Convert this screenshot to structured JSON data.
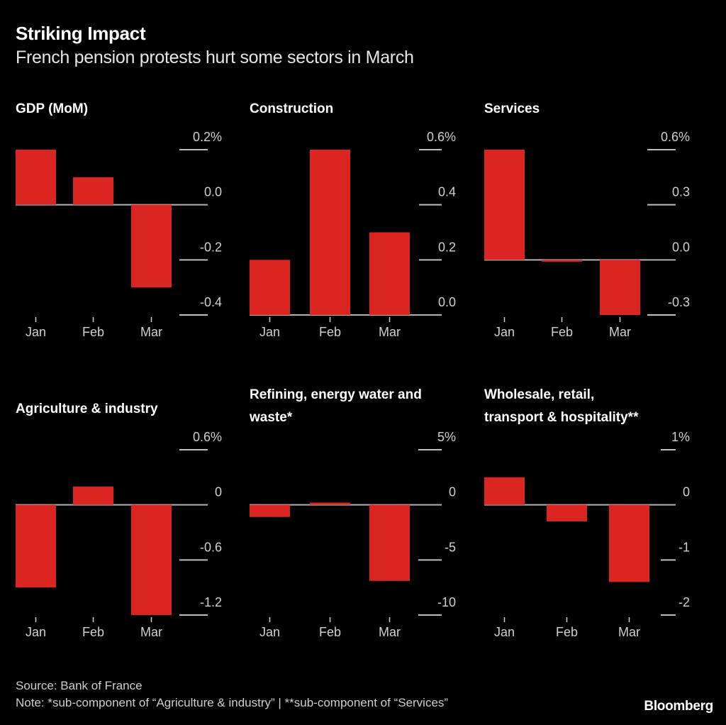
{
  "header": {
    "title": "Striking Impact",
    "subtitle": "French pension protests hurt some sectors in March"
  },
  "footer": {
    "source": "Source: Bank of France",
    "note": "Note: *sub-component of “Agriculture & industry” | **sub-component of “Services”",
    "brand": "Bloomberg"
  },
  "colors": {
    "background": "#000000",
    "bar": "#da2520",
    "zero_line": "#b3b3b3",
    "gridline": "#bfbfbf",
    "text": "#ffffff",
    "muted_text": "#d0d0d0"
  },
  "chart_data": [
    {
      "type": "bar",
      "title": "GDP (MoM)",
      "title_lines": [
        "GDP (MoM)"
      ],
      "categories": [
        "Jan",
        "Feb",
        "Mar"
      ],
      "values": [
        0.2,
        0.1,
        -0.3
      ],
      "unit": "%",
      "yticks": [
        0.2,
        0.0,
        -0.2,
        -0.4
      ],
      "ytick_labels": [
        "0.2%",
        "0.0",
        "-0.2",
        "-0.4"
      ],
      "ylim": [
        -0.4,
        0.2
      ],
      "grid": true
    },
    {
      "type": "bar",
      "title": "Construction",
      "title_lines": [
        "Construction"
      ],
      "categories": [
        "Jan",
        "Feb",
        "Mar"
      ],
      "values": [
        0.2,
        0.6,
        0.3
      ],
      "unit": "%",
      "yticks": [
        0.6,
        0.4,
        0.2,
        0.0
      ],
      "ytick_labels": [
        "0.6%",
        "0.4",
        "0.2",
        "0.0"
      ],
      "ylim": [
        0.0,
        0.6
      ],
      "grid": true
    },
    {
      "type": "bar",
      "title": "Services",
      "title_lines": [
        "Services"
      ],
      "categories": [
        "Jan",
        "Feb",
        "Mar"
      ],
      "values": [
        0.6,
        -0.01,
        -0.3
      ],
      "unit": "%",
      "yticks": [
        0.6,
        0.3,
        0.0,
        -0.3
      ],
      "ytick_labels": [
        "0.6%",
        "0.3",
        "0.0",
        "-0.3"
      ],
      "ylim": [
        -0.3,
        0.6
      ],
      "grid": true
    },
    {
      "type": "bar",
      "title": "Agriculture & industry",
      "title_lines": [
        "Agriculture & industry"
      ],
      "categories": [
        "Jan",
        "Feb",
        "Mar"
      ],
      "values": [
        -0.9,
        0.2,
        -1.2
      ],
      "unit": "%",
      "yticks": [
        0.6,
        0,
        -0.6,
        -1.2
      ],
      "ytick_labels": [
        "0.6%",
        "0",
        "-0.6",
        "-1.2"
      ],
      "ylim": [
        -1.2,
        0.6
      ],
      "grid": true
    },
    {
      "type": "bar",
      "title": "Refining, energy water and waste*",
      "title_lines": [
        "Refining, energy water and",
        "waste*"
      ],
      "categories": [
        "Jan",
        "Feb",
        "Mar"
      ],
      "values": [
        -1.1,
        0.2,
        -6.9
      ],
      "unit": "%",
      "yticks": [
        5,
        0,
        -5,
        -10
      ],
      "ytick_labels": [
        "5%",
        "0",
        "-5",
        "-10"
      ],
      "ylim": [
        -10,
        5
      ],
      "grid": true
    },
    {
      "type": "bar",
      "title": "Wholesale, retail, transport & hospitality**",
      "title_lines": [
        "Wholesale, retail,",
        "transport & hospitality**"
      ],
      "categories": [
        "Jan",
        "Feb",
        "Mar"
      ],
      "values": [
        0.5,
        -0.3,
        -1.4
      ],
      "unit": "%",
      "yticks": [
        1,
        0,
        -1,
        -2
      ],
      "ytick_labels": [
        "1%",
        "0",
        "-1",
        "-2"
      ],
      "ylim": [
        -2,
        1
      ],
      "grid": true
    }
  ]
}
